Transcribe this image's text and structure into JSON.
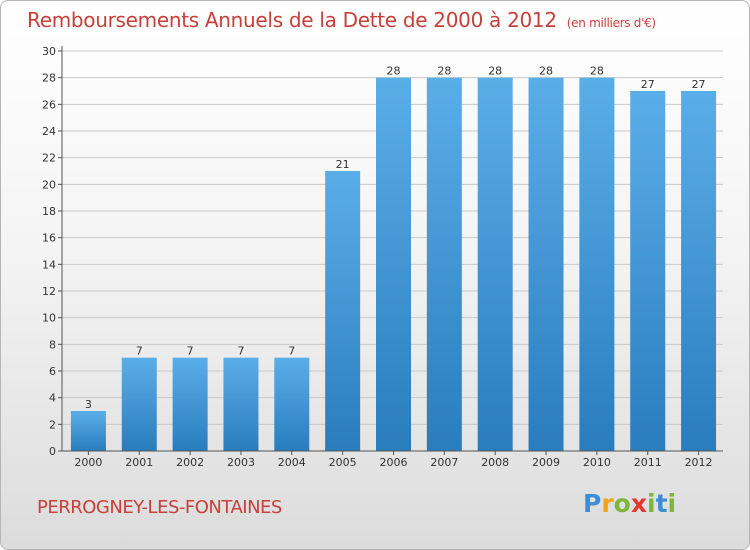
{
  "title": "Remboursements Annuels de la Dette de 2000 à 2012",
  "subtitle": "(en milliers d'€)",
  "commune": "PERROGNEY-LES-FONTAINES",
  "logo": {
    "text": "Proxiti",
    "colors": [
      "#3a8dd6",
      "#f2a21d",
      "#7fb539",
      "#e2392f",
      "#7fb539",
      "#3a8dd6",
      "#7fb539"
    ]
  },
  "colors": {
    "bar_top": "#5aaee8",
    "bar_bottom": "#2a7dbd",
    "grid": "#c9c9c9",
    "axis_text": "#333333",
    "title": "#c8403a"
  },
  "chart_data": {
    "type": "bar",
    "categories": [
      "2000",
      "2001",
      "2002",
      "2003",
      "2004",
      "2005",
      "2006",
      "2007",
      "2008",
      "2009",
      "2010",
      "2011",
      "2012"
    ],
    "values": [
      3,
      7,
      7,
      7,
      7,
      21,
      28,
      28,
      28,
      28,
      28,
      27,
      27
    ],
    "data_labels": [
      "3",
      "7",
      "7",
      "7",
      "7",
      "21",
      "28",
      "28",
      "28",
      "28",
      "28",
      "27",
      "27"
    ],
    "y_ticks": [
      "0",
      "2",
      "4",
      "6",
      "8",
      "10",
      "12",
      "14",
      "16",
      "18",
      "20",
      "22",
      "24",
      "26",
      "28",
      "30"
    ],
    "ylim": [
      0,
      30
    ],
    "grid": true,
    "title": "Remboursements Annuels de la Dette de 2000 à 2012",
    "xlabel": "",
    "ylabel": ""
  }
}
